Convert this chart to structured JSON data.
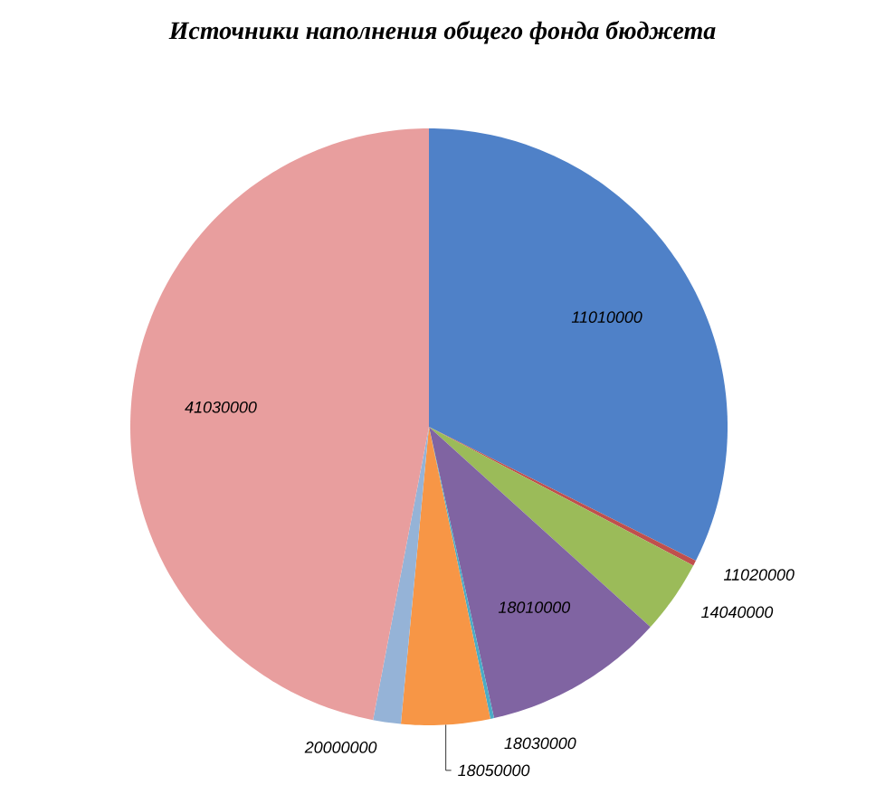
{
  "chart_data": {
    "type": "pie",
    "title": "Источники наполнения общего фонда бюджета",
    "categories": [
      "11010000",
      "11020000",
      "14040000",
      "18010000",
      "18030000",
      "18050000",
      "20000000",
      "41030000"
    ],
    "values": [
      32.4,
      0.3,
      4.0,
      9.8,
      0.2,
      4.8,
      1.5,
      47.0
    ],
    "colors": [
      "#4f81c8",
      "#c0504d",
      "#9bbb59",
      "#8064a2",
      "#4bacc6",
      "#f79646",
      "#95b3d7",
      "#e89e9e"
    ]
  }
}
